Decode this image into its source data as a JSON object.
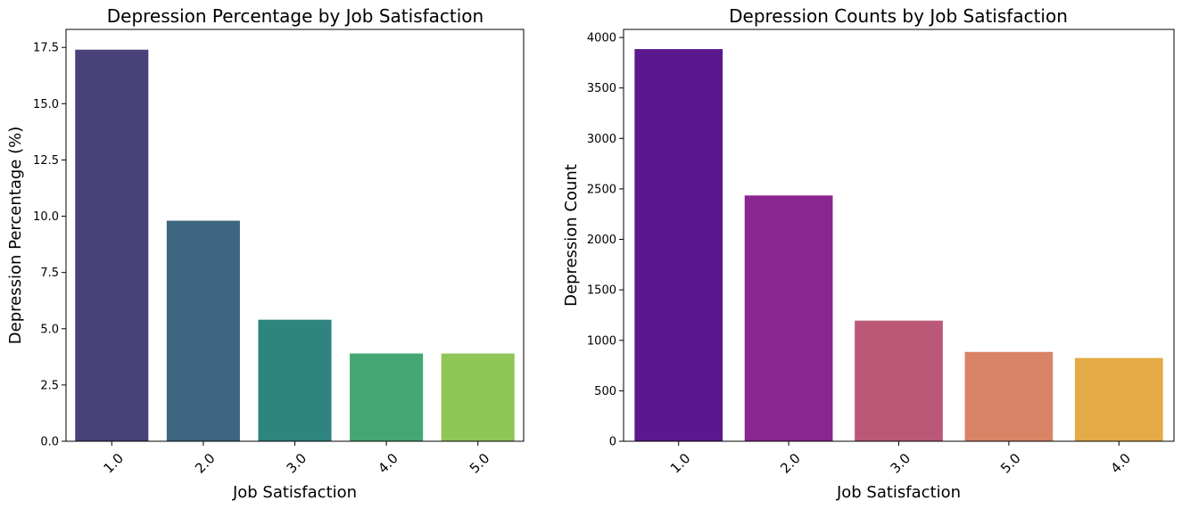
{
  "chart_data": [
    {
      "type": "bar",
      "title": "Depression Percentage by Job Satisfaction",
      "xlabel": "Job Satisfaction",
      "ylabel": "Depression Percentage (%)",
      "categories": [
        "1.0",
        "2.0",
        "3.0",
        "4.0",
        "5.0"
      ],
      "values": [
        17.4,
        9.8,
        5.4,
        3.9,
        3.9
      ],
      "colors": [
        "#48417A",
        "#3D6680",
        "#2E847E",
        "#44A772",
        "#8FC656"
      ],
      "ylim": [
        0,
        18.3
      ],
      "yticks": [
        "0.0",
        "2.5",
        "5.0",
        "7.5",
        "10.0",
        "12.5",
        "15.0",
        "17.5"
      ],
      "ytick_values": [
        0,
        2.5,
        5,
        7.5,
        10,
        12.5,
        15,
        17.5
      ],
      "grid": false,
      "xtick_rotation": 45
    },
    {
      "type": "bar",
      "title": "Depression Counts by Job Satisfaction",
      "xlabel": "Job Satisfaction",
      "ylabel": "Depression Count",
      "categories": [
        "1.0",
        "2.0",
        "3.0",
        "5.0",
        "4.0"
      ],
      "values": [
        3885,
        2435,
        1195,
        885,
        825
      ],
      "colors": [
        "#5B178E",
        "#8A268F",
        "#BB5878",
        "#D98466",
        "#E4AB46"
      ],
      "ylim": [
        0,
        4080
      ],
      "yticks": [
        "0",
        "500",
        "1000",
        "1500",
        "2000",
        "2500",
        "3000",
        "3500",
        "4000"
      ],
      "ytick_values": [
        0,
        500,
        1000,
        1500,
        2000,
        2500,
        3000,
        3500,
        4000
      ],
      "grid": false,
      "xtick_rotation": 45
    }
  ]
}
